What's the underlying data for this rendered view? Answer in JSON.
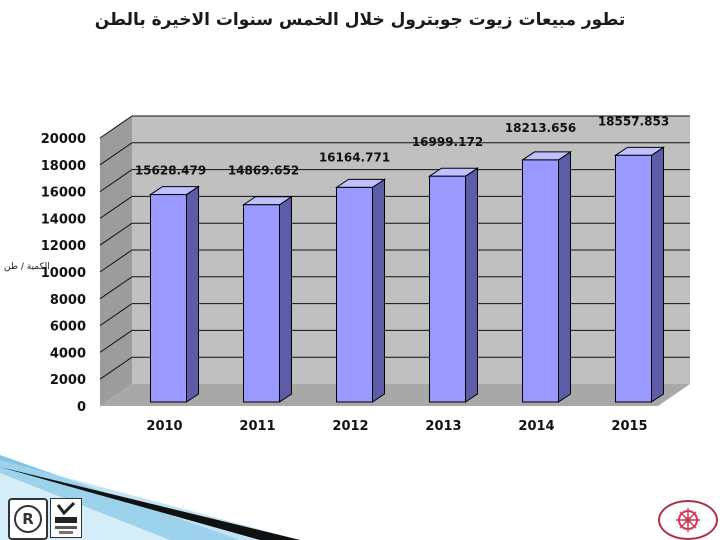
{
  "chart_data": {
    "type": "bar",
    "title": "تطور مبيعات زيوت جوبترول خلال الخمس سنوات الاخيرة بالطن",
    "ylabel": "الكمية / طن",
    "xlabel": "",
    "categories": [
      "2010",
      "2011",
      "2012",
      "2013",
      "2014",
      "2015"
    ],
    "values": [
      15628.479,
      14869.652,
      16164.771,
      16999.172,
      18213.656,
      18557.853
    ],
    "data_labels": [
      "15628.479",
      "14869.652",
      "16164.771",
      "16999.172",
      "18213.656",
      "18557.853"
    ],
    "ylim": [
      0,
      20000
    ],
    "yticks": [
      "0",
      "2000",
      "4000",
      "6000",
      "8000",
      "10000",
      "12000",
      "14000",
      "16000",
      "18000",
      "20000"
    ],
    "grid": true,
    "legend": "none",
    "colors": {
      "bar_front": "#9999ff",
      "bar_side": "#5c5ca8",
      "bar_top": "#c0c0ff",
      "wall": "#c0c0c0",
      "wall_side": "#9c9c9c",
      "floor": "#a8a8a8"
    }
  },
  "logos": {
    "left_badge": "registered-mark-icon",
    "center_badge": "ukas-badge-icon",
    "right_badge": "company-emblem-icon"
  }
}
